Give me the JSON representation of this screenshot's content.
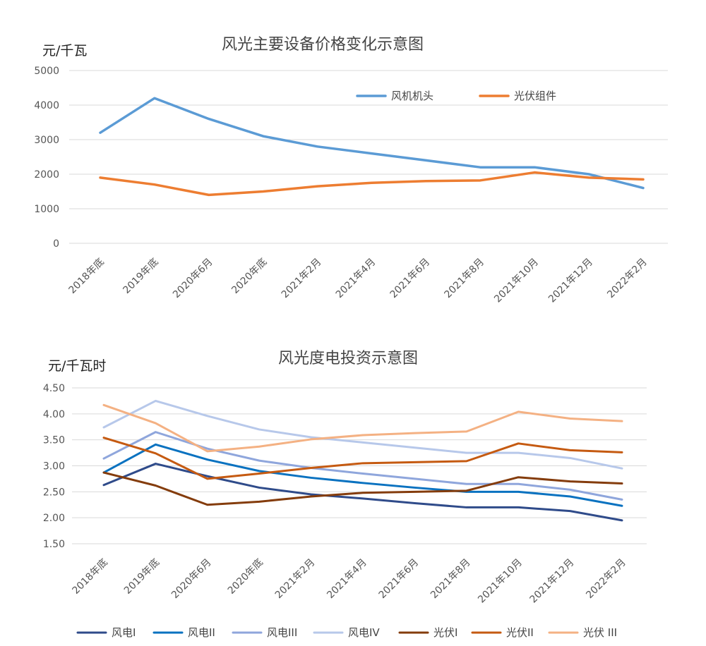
{
  "chart_data": [
    {
      "type": "line",
      "title": "风光主要设备价格变化示意图",
      "ylabel": "元/千瓦",
      "categories": [
        "2018年底",
        "2019年底",
        "2020年6月",
        "2020年底",
        "2021年2月",
        "2021年4月",
        "2021年6月",
        "2021年8月",
        "2021年10月",
        "2021年12月",
        "2022年2月"
      ],
      "ylim": [
        0,
        5000
      ],
      "yticks": [
        "0",
        "1000",
        "2000",
        "3000",
        "4000",
        "5000"
      ],
      "grid": true,
      "legend_position": "top-right",
      "series": [
        {
          "name": "风机机头",
          "color": "#5b9bd5",
          "values": [
            3200,
            4200,
            3600,
            3100,
            2800,
            2600,
            2400,
            2200,
            2200,
            2000,
            1600
          ]
        },
        {
          "name": "光伏组件",
          "color": "#ed7d31",
          "values": [
            1900,
            1700,
            1400,
            1500,
            1650,
            1750,
            1800,
            1820,
            2050,
            1900,
            1850
          ]
        }
      ]
    },
    {
      "type": "line",
      "title": "风光度电投资示意图",
      "ylabel": "元/千瓦时",
      "categories": [
        "2018年底",
        "2019年底",
        "2020年6月",
        "2020年底",
        "2021年2月",
        "2021年4月",
        "2021年6月",
        "2021年8月",
        "2021年10月",
        "2021年12月",
        "2022年2月"
      ],
      "ylim": [
        1.5,
        4.5
      ],
      "yticks": [
        "1.50",
        "2.00",
        "2.50",
        "3.00",
        "3.50",
        "4.00",
        "4.50"
      ],
      "grid": true,
      "legend_position": "bottom",
      "series": [
        {
          "name": "风电I",
          "color": "#2f4b8a",
          "values": [
            2.63,
            3.04,
            2.8,
            2.58,
            2.45,
            2.37,
            2.28,
            2.2,
            2.2,
            2.13,
            1.95
          ]
        },
        {
          "name": "风电II",
          "color": "#0a72c0",
          "values": [
            2.87,
            3.41,
            3.12,
            2.9,
            2.77,
            2.67,
            2.58,
            2.5,
            2.5,
            2.41,
            2.23
          ]
        },
        {
          "name": "风电III",
          "color": "#8fa6dc",
          "values": [
            3.14,
            3.65,
            3.33,
            3.1,
            2.96,
            2.85,
            2.75,
            2.65,
            2.65,
            2.54,
            2.35
          ]
        },
        {
          "name": "风电IV",
          "color": "#b7c8ea",
          "values": [
            3.74,
            4.25,
            3.96,
            3.7,
            3.55,
            3.45,
            3.35,
            3.25,
            3.25,
            3.15,
            2.95
          ]
        },
        {
          "name": "光伏I",
          "color": "#843c0c",
          "values": [
            2.87,
            2.62,
            2.25,
            2.31,
            2.41,
            2.48,
            2.5,
            2.52,
            2.78,
            2.7,
            2.66
          ]
        },
        {
          "name": "光伏II",
          "color": "#c55a11",
          "values": [
            3.54,
            3.24,
            2.75,
            2.85,
            2.96,
            3.05,
            3.07,
            3.09,
            3.43,
            3.3,
            3.26
          ]
        },
        {
          "name": "光伏 III",
          "color": "#f4b183",
          "values": [
            4.17,
            3.82,
            3.28,
            3.37,
            3.51,
            3.59,
            3.63,
            3.66,
            4.04,
            3.91,
            3.86
          ]
        }
      ]
    }
  ]
}
